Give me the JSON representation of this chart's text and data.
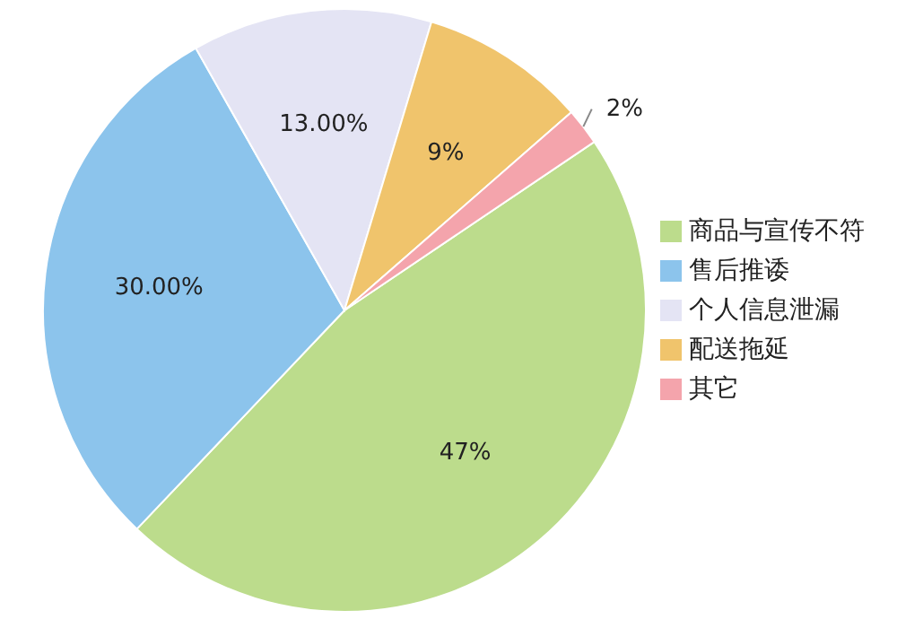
{
  "chart_data": {
    "type": "pie",
    "categories": [
      "商品与宣传不符",
      "售后推诿",
      "个人信息泄漏",
      "配送拖延",
      "其它"
    ],
    "values": [
      47,
      30,
      13,
      9,
      2
    ],
    "value_labels": [
      "47%",
      "30.00%",
      "13.00%",
      "9%",
      "2%"
    ],
    "colors": [
      "#bcdc8c",
      "#8cc4ec",
      "#e4e4f4",
      "#f0c46c",
      "#f4a4ac"
    ],
    "legend": "right"
  }
}
